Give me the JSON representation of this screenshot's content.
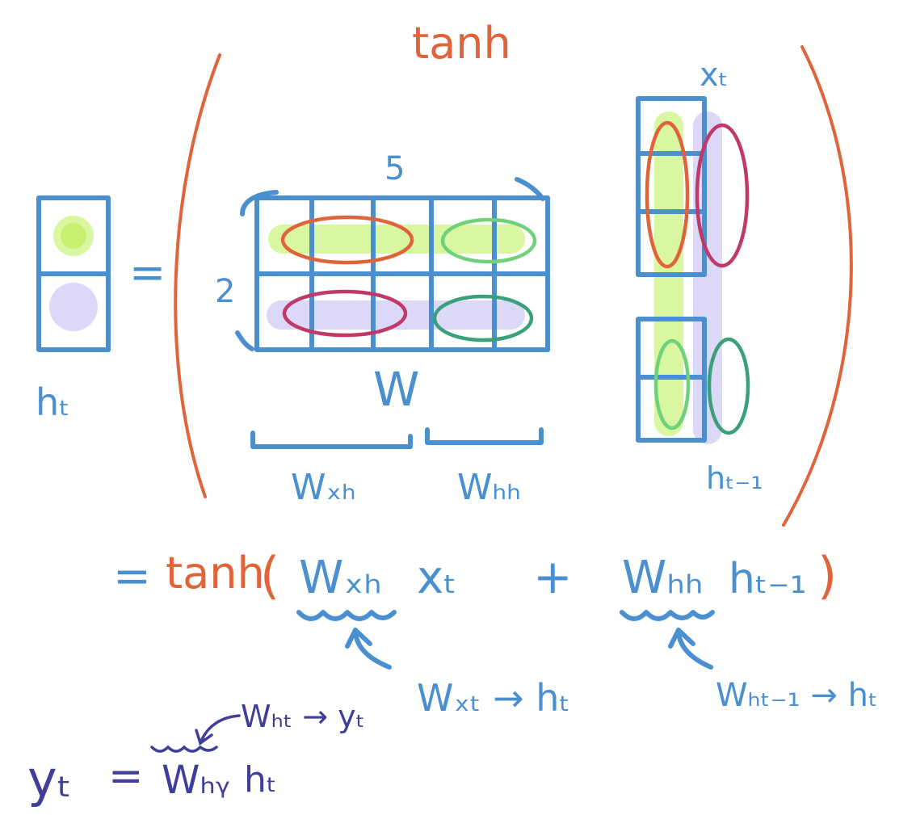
{
  "colors": {
    "blue": "#4a90d0",
    "orange": "#e0643a",
    "indigo": "#3f3f9a",
    "lime": "#d8f7a0",
    "lavender": "#dcd8f7",
    "ring_orange": "#e0643a",
    "ring_magenta": "#c0396a",
    "ring_green_light": "#6fd17a",
    "ring_green_dark": "#3aa07a"
  },
  "top": {
    "tanh": "tanh"
  },
  "ht_vector": {
    "label": "hₜ",
    "equals": "="
  },
  "W_matrix": {
    "label": "W",
    "cols": "5",
    "rows": "2",
    "brace_left_label": "Wₓₕ",
    "brace_right_label": "Wₕₕ"
  },
  "input_vector": {
    "top_label": "xₜ",
    "bottom_label": "hₜ₋₁"
  },
  "equation2": {
    "equals": "=",
    "tanh": "tanh",
    "open_paren": "(",
    "wxh": "Wₓₕ",
    "xt": "xₜ",
    "plus": "+",
    "whh": "Wₕₕ",
    "ht_prev": "hₜ₋₁",
    "close_paren": ")"
  },
  "annotations": {
    "wxh_note": "Wₓₜ → hₜ",
    "whh_note": "Wₕₜ₋₁ → hₜ"
  },
  "equation3": {
    "yt": "yₜ",
    "equals": "=",
    "why": "Wₕᵧ",
    "ht": "hₜ",
    "note": "Wₕₜ → yₜ"
  }
}
